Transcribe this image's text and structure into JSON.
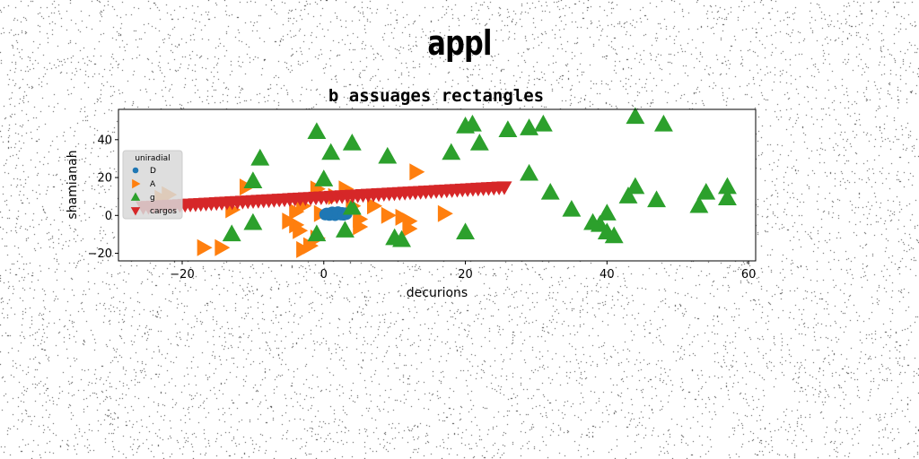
{
  "figure_title": "appl",
  "chart_data": {
    "type": "scatter",
    "title": "b assuages rectangles",
    "xlabel": "decurions",
    "ylabel": "shamianah",
    "xlim": [
      -29,
      61
    ],
    "ylim": [
      -24,
      56
    ],
    "xticks": [
      -20,
      0,
      20,
      40,
      60
    ],
    "yticks": [
      -20,
      0,
      20,
      40
    ],
    "grid": false,
    "legend": {
      "title": "uniradial",
      "placement": "center-left"
    },
    "series": [
      {
        "name": "D",
        "marker": "circle",
        "color": "#1f77b4",
        "points": [
          [
            0.2,
            0.5
          ],
          [
            0.6,
            0.8
          ],
          [
            1.0,
            1.2
          ],
          [
            1.4,
            0.9
          ],
          [
            1.8,
            1.4
          ],
          [
            2.2,
            1.0
          ],
          [
            2.6,
            1.3
          ],
          [
            3.0,
            1.1
          ],
          [
            0.8,
            0.3
          ],
          [
            1.6,
            0.2
          ],
          [
            2.4,
            0.5
          ],
          [
            1.2,
            1.6
          ],
          [
            2.0,
            1.7
          ],
          [
            0.4,
            1.0
          ],
          [
            2.8,
            0.4
          ],
          [
            3.2,
            0.8
          ]
        ]
      },
      {
        "name": "A",
        "marker": "triangle-right",
        "color": "#ff7f0e",
        "points": [
          [
            -17,
            -17
          ],
          [
            -14.5,
            -17
          ],
          [
            -22,
            11
          ],
          [
            -23,
            9
          ],
          [
            -13,
            3
          ],
          [
            -11,
            15
          ],
          [
            -5,
            -3
          ],
          [
            -4,
            -5
          ],
          [
            -3.5,
            -8
          ],
          [
            -2,
            -16
          ],
          [
            -3,
            -18
          ],
          [
            -1,
            -12
          ],
          [
            -4,
            2
          ],
          [
            -3,
            5
          ],
          [
            -1,
            14
          ],
          [
            -0.5,
            1
          ],
          [
            1.5,
            10
          ],
          [
            3,
            14
          ],
          [
            4,
            5
          ],
          [
            5,
            -2
          ],
          [
            5,
            -6
          ],
          [
            7,
            5
          ],
          [
            9,
            0
          ],
          [
            11,
            -1
          ],
          [
            12,
            -3
          ],
          [
            12,
            -7
          ],
          [
            13,
            23
          ],
          [
            17,
            1
          ]
        ]
      },
      {
        "name": "g",
        "marker": "triangle-up",
        "color": "#2ca02c",
        "points": [
          [
            -13,
            -10
          ],
          [
            -10,
            -4
          ],
          [
            -10,
            18
          ],
          [
            -9,
            30
          ],
          [
            -1,
            44
          ],
          [
            0,
            19
          ],
          [
            1,
            33
          ],
          [
            4,
            38
          ],
          [
            3,
            -8
          ],
          [
            4,
            4
          ],
          [
            -1,
            -10
          ],
          [
            9,
            31
          ],
          [
            10,
            -12
          ],
          [
            11,
            -13
          ],
          [
            18,
            33
          ],
          [
            20,
            47
          ],
          [
            21,
            48
          ],
          [
            22,
            38
          ],
          [
            20,
            -9
          ],
          [
            26,
            45
          ],
          [
            29,
            46
          ],
          [
            31,
            48
          ],
          [
            29,
            22
          ],
          [
            32,
            12
          ],
          [
            35,
            3
          ],
          [
            38,
            -4
          ],
          [
            40,
            1
          ],
          [
            40,
            -9
          ],
          [
            41,
            -11
          ],
          [
            39,
            -5
          ],
          [
            43,
            10
          ],
          [
            44,
            15
          ],
          [
            44,
            52
          ],
          [
            47,
            8
          ],
          [
            48,
            48
          ],
          [
            53,
            5
          ],
          [
            54,
            12
          ],
          [
            57,
            15
          ],
          [
            57,
            9
          ]
        ]
      },
      {
        "name": "cargos",
        "marker": "triangle-down",
        "color": "#d62728",
        "points": []
      }
    ],
    "cargos_line": {
      "x_start": -25.5,
      "x_end": 25.5,
      "y_start": 4.5,
      "y_end": 15,
      "count": 70
    }
  }
}
